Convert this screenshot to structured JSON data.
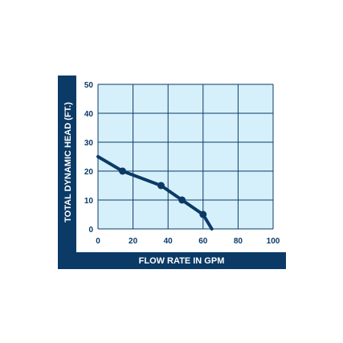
{
  "chart_data": {
    "type": "line",
    "title": "",
    "xlabel": "FLOW RATE IN GPM",
    "ylabel": "TOTAL DYNAMIC HEAD (FT.)",
    "xlim": [
      0,
      100
    ],
    "ylim": [
      0,
      50
    ],
    "xticks": [
      "0",
      "20",
      "40",
      "60",
      "80",
      "100"
    ],
    "yticks": [
      "0",
      "10",
      "20",
      "30",
      "40",
      "50"
    ],
    "grid": true,
    "series": [
      {
        "x": [
          0,
          14,
          36,
          48,
          60,
          65
        ],
        "y": [
          25,
          20,
          15,
          10,
          5,
          0
        ],
        "markers": [
          false,
          true,
          true,
          true,
          true,
          false
        ]
      }
    ],
    "colors": {
      "plot_bg": "#d6f0fb",
      "grid": "#0b3a66",
      "line": "#0b3a66",
      "frame": "#0b3a66",
      "tick_text": "#0b3a66",
      "label_text": "#ffffff"
    }
  }
}
